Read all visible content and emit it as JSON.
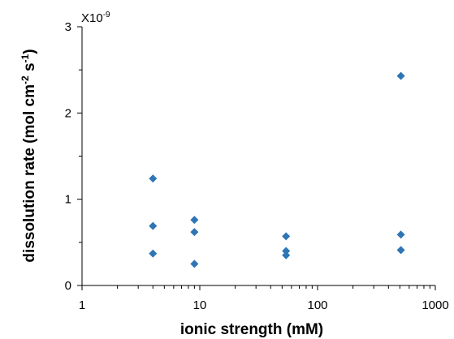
{
  "chart_data": {
    "type": "scatter",
    "x_scale": "log",
    "xlim": [
      1,
      1000
    ],
    "ylim": [
      0,
      3
    ],
    "x_ticks": [
      1,
      10,
      100,
      1000
    ],
    "x_tick_labels": [
      "1",
      "10",
      "100",
      "1000"
    ],
    "y_ticks": [
      0,
      1,
      2,
      3
    ],
    "y_tick_labels": [
      "0",
      "1",
      "2",
      "3"
    ],
    "xlabel": "ionic strength (mM)",
    "ylabel": {
      "prefix": "dissolution rate (mol cm",
      "exp1": "-2",
      "middle": " s",
      "exp2": "-1",
      "suffix": ")"
    },
    "y_multiplier": {
      "base": "X10",
      "exponent": "-9"
    },
    "grid": false,
    "marker": "diamond",
    "color": "#2E75B6",
    "series": [
      {
        "points": [
          {
            "x": 4,
            "y": 1.24
          },
          {
            "x": 4,
            "y": 0.69
          },
          {
            "x": 4,
            "y": 0.37
          },
          {
            "x": 9,
            "y": 0.76
          },
          {
            "x": 9,
            "y": 0.62
          },
          {
            "x": 9,
            "y": 0.25
          },
          {
            "x": 54,
            "y": 0.57
          },
          {
            "x": 54,
            "y": 0.4
          },
          {
            "x": 54,
            "y": 0.35
          },
          {
            "x": 510,
            "y": 2.43
          },
          {
            "x": 510,
            "y": 0.59
          },
          {
            "x": 510,
            "y": 0.41
          }
        ]
      }
    ]
  }
}
